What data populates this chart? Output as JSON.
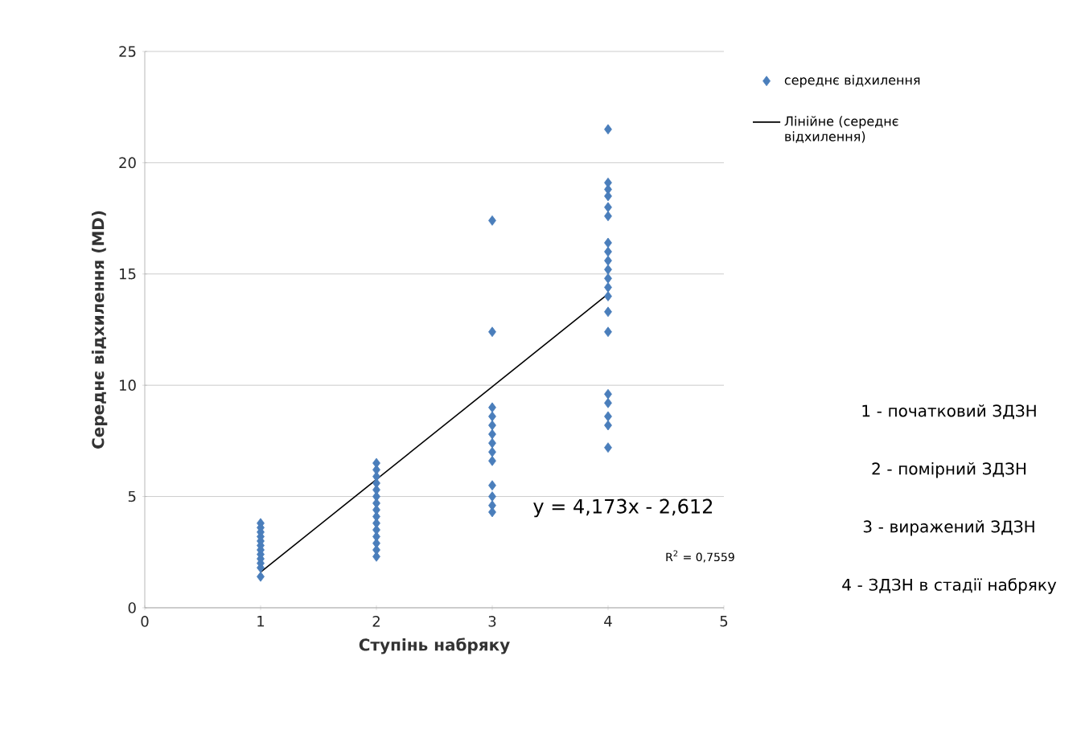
{
  "chart_data": {
    "type": "scatter",
    "xlabel": "Ступінь набряку",
    "ylabel": "Середнє відхилення (MD)",
    "xlim": [
      0,
      5
    ],
    "xticks": [
      0,
      1,
      2,
      3,
      4,
      5
    ],
    "ylim": [
      0,
      25
    ],
    "yticks": [
      0,
      5,
      10,
      15,
      20,
      25
    ],
    "grid": "y",
    "legend": "top right",
    "series": [
      {
        "name": "середнє відхилення",
        "color": "#4a7ebb",
        "marker": "diamond",
        "x": [
          1,
          1,
          1,
          1,
          1,
          1,
          1,
          1,
          1,
          1,
          1,
          1,
          2,
          2,
          2,
          2,
          2,
          2,
          2,
          2,
          2,
          2,
          2,
          2,
          2,
          2,
          2,
          3,
          3,
          3,
          3,
          3,
          3,
          3,
          3,
          3,
          3,
          3,
          3,
          3,
          4,
          4,
          4,
          4,
          4,
          4,
          4,
          4,
          4,
          4,
          4,
          4,
          4,
          4,
          4,
          4,
          4,
          4,
          4,
          4
        ],
        "values": [
          1.4,
          1.8,
          2.0,
          2.2,
          2.4,
          2.6,
          2.8,
          3.0,
          3.2,
          3.4,
          3.6,
          3.8,
          2.3,
          2.6,
          2.9,
          3.2,
          3.5,
          3.8,
          4.1,
          4.4,
          4.7,
          5.0,
          5.3,
          5.6,
          5.9,
          6.2,
          6.5,
          17.4,
          12.4,
          9.0,
          8.6,
          8.2,
          7.8,
          7.4,
          7.0,
          6.6,
          5.5,
          5.0,
          4.6,
          4.3,
          21.5,
          19.1,
          18.8,
          18.5,
          18.0,
          17.6,
          16.4,
          16.0,
          15.6,
          15.2,
          14.8,
          14.4,
          14.0,
          13.3,
          12.4,
          9.6,
          9.2,
          8.6,
          8.2,
          7.2
        ]
      },
      {
        "name": "Лінійне (середнє відхилення)",
        "color": "#000000",
        "type": "line",
        "marker": "none",
        "x": [
          1,
          4
        ],
        "values": [
          1.6,
          14.1
        ]
      }
    ],
    "annotations": [
      "y = 4,173x - 2,612",
      "R$^{2}$ = 0,7559",
      "1 - початковий ЗДЗН",
      "2 - помірний ЗДЗН",
      "3 - виражений ЗДЗН",
      "4 - ЗДЗН в стадії набряку"
    ]
  }
}
